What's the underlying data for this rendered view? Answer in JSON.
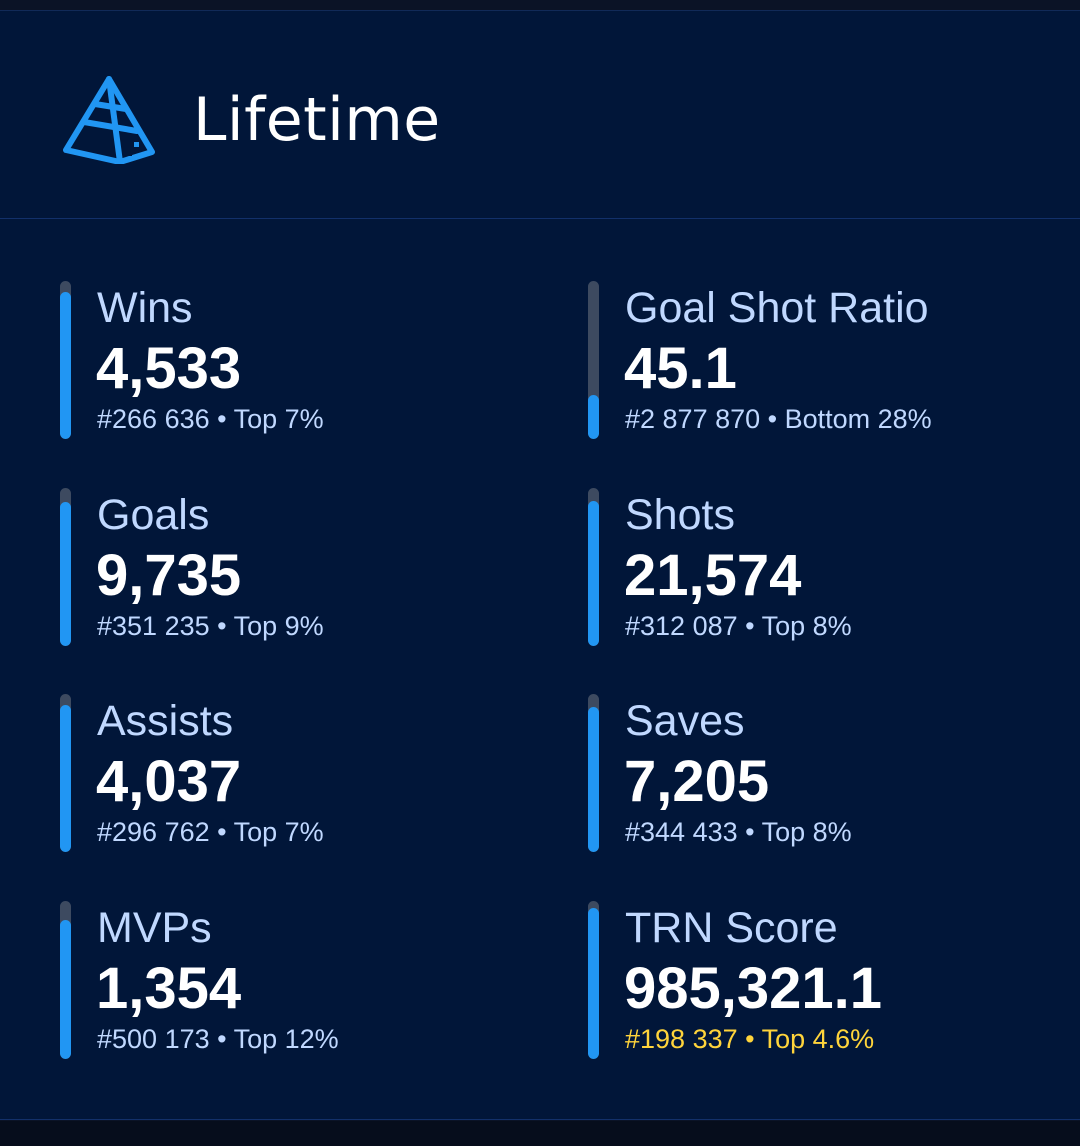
{
  "header": {
    "title": "Lifetime",
    "logo_icon": "pyramid-logo-icon",
    "accent_color": "#2196f3"
  },
  "stats": [
    {
      "label": "Wins",
      "value": "4,533",
      "rank": "#266 636 • Top 7%",
      "percentile_fill": 0.93
    },
    {
      "label": "Goal Shot Ratio",
      "value": "45.1",
      "rank": "#2 877 870 • Bottom 28%",
      "percentile_fill": 0.28
    },
    {
      "label": "Goals",
      "value": "9,735",
      "rank": "#351 235 • Top 9%",
      "percentile_fill": 0.91
    },
    {
      "label": "Shots",
      "value": "21,574",
      "rank": "#312 087 • Top 8%",
      "percentile_fill": 0.92
    },
    {
      "label": "Assists",
      "value": "4,037",
      "rank": "#296 762 • Top 7%",
      "percentile_fill": 0.93
    },
    {
      "label": "Saves",
      "value": "7,205",
      "rank": "#344 433 • Top 8%",
      "percentile_fill": 0.92
    },
    {
      "label": "MVPs",
      "value": "1,354",
      "rank": "#500 173 • Top 12%",
      "percentile_fill": 0.88
    },
    {
      "label": "TRN Score",
      "value": "985,321.1",
      "rank": "#198 337 • Top 4.6%",
      "percentile_fill": 0.954,
      "rank_color": "#ffd43b"
    }
  ]
}
